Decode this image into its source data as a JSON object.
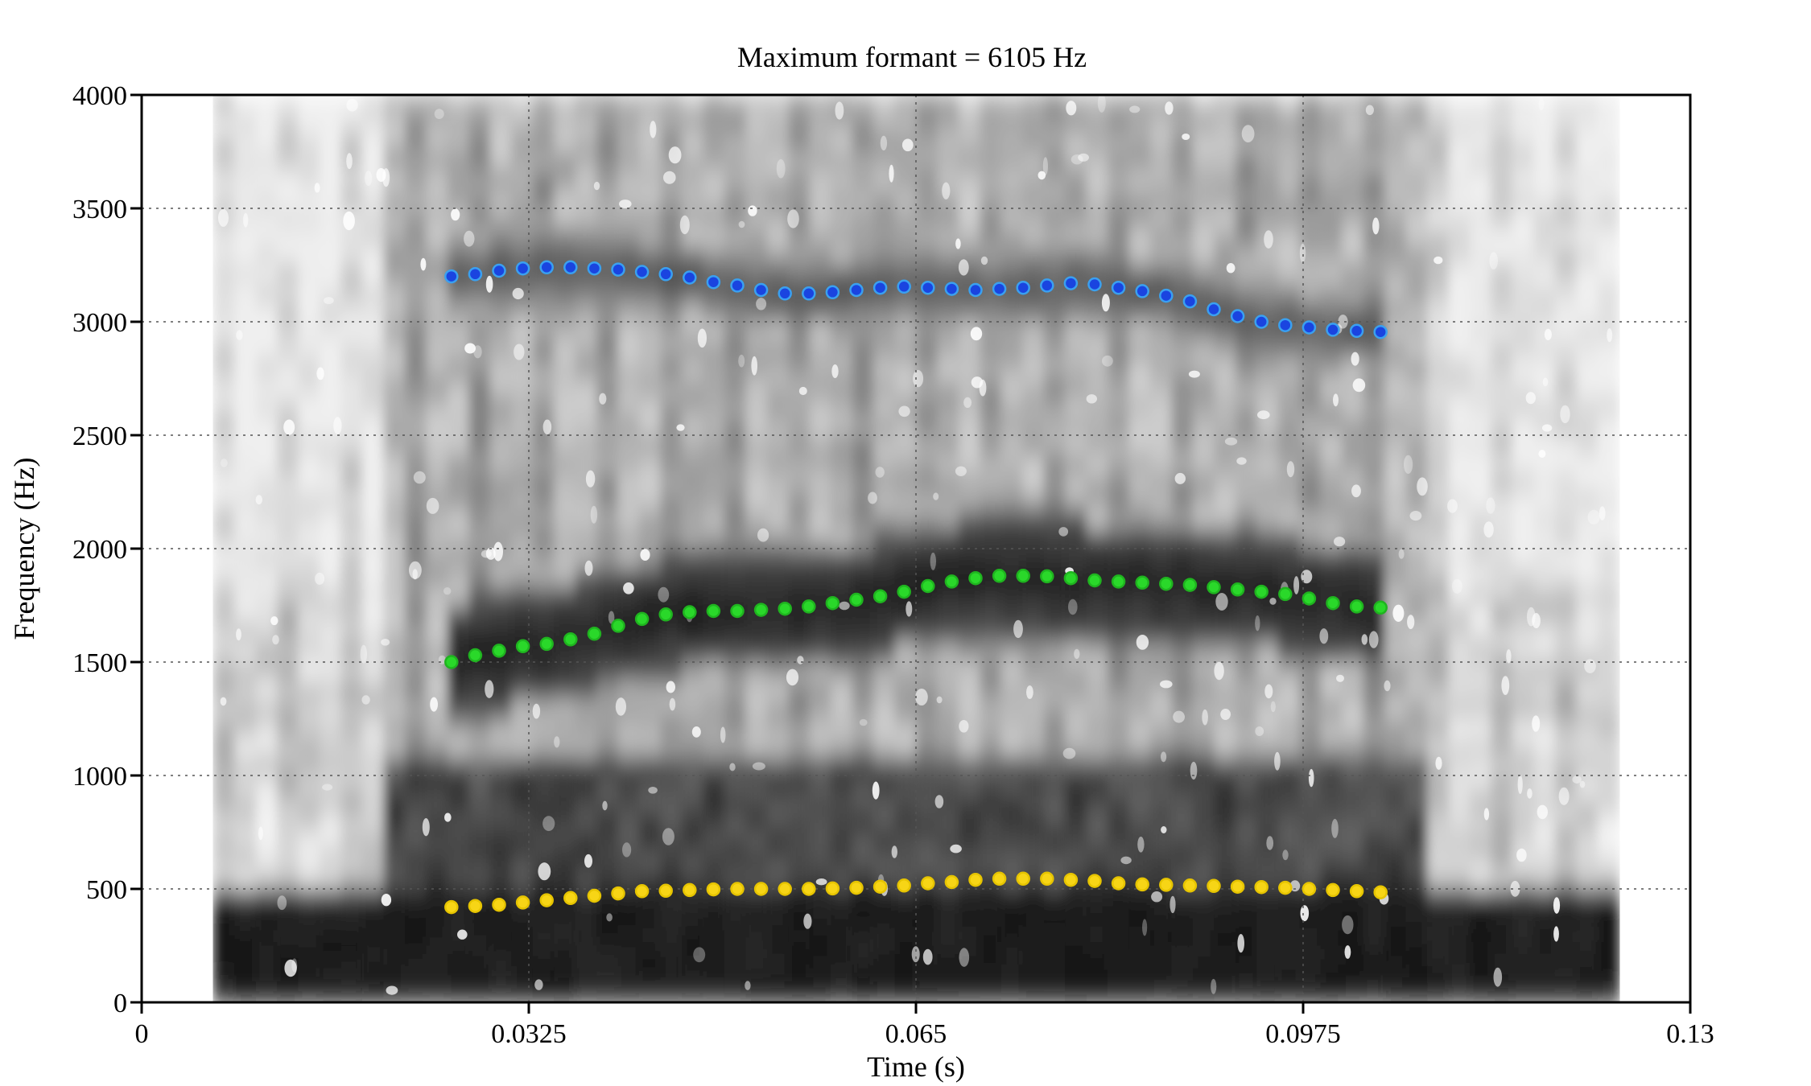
{
  "chart_data": {
    "type": "scatter",
    "title": "Maximum formant  =  6105 Hz",
    "xlabel": "Time (s)",
    "ylabel": "Frequency (Hz)",
    "xlim": [
      0,
      0.13
    ],
    "ylim": [
      0,
      4000
    ],
    "x_ticks": [
      0,
      0.0325,
      0.065,
      0.0975,
      0.13
    ],
    "x_tick_labels": [
      "0",
      "0.0325",
      "0.065",
      "0.0975",
      "0.13"
    ],
    "y_ticks": [
      0,
      500,
      1000,
      1500,
      2000,
      2500,
      3000,
      3500,
      4000
    ],
    "y_tick_labels": [
      "0",
      "500",
      "1000",
      "1500",
      "2000",
      "2500",
      "3000",
      "3500",
      "4000"
    ],
    "grid": true,
    "background": "grayscale spectrogram",
    "spectrogram_time_range": [
      0.006,
      0.124
    ],
    "x": [
      0.026,
      0.028,
      0.03,
      0.032,
      0.034,
      0.036,
      0.038,
      0.04,
      0.042,
      0.044,
      0.046,
      0.048,
      0.05,
      0.052,
      0.054,
      0.056,
      0.058,
      0.06,
      0.062,
      0.064,
      0.066,
      0.068,
      0.07,
      0.072,
      0.074,
      0.076,
      0.078,
      0.08,
      0.082,
      0.084,
      0.086,
      0.088,
      0.09,
      0.092,
      0.094,
      0.096,
      0.098,
      0.1,
      0.102,
      0.104
    ],
    "series": [
      {
        "color": "#f7d516",
        "outline": "#e6c400",
        "values": [
          420,
          425,
          430,
          440,
          450,
          460,
          470,
          480,
          490,
          492,
          495,
          498,
          500,
          500,
          500,
          500,
          502,
          505,
          510,
          515,
          525,
          530,
          540,
          545,
          545,
          545,
          540,
          535,
          525,
          520,
          518,
          515,
          513,
          510,
          508,
          505,
          500,
          495,
          490,
          485
        ]
      },
      {
        "color": "#2ad82a",
        "outline": "#1fb41f",
        "values": [
          1500,
          1530,
          1550,
          1570,
          1580,
          1600,
          1625,
          1660,
          1690,
          1710,
          1720,
          1725,
          1725,
          1730,
          1735,
          1745,
          1760,
          1775,
          1790,
          1810,
          1835,
          1855,
          1870,
          1880,
          1880,
          1878,
          1870,
          1860,
          1855,
          1850,
          1845,
          1840,
          1830,
          1820,
          1810,
          1800,
          1780,
          1760,
          1745,
          1740
        ]
      },
      {
        "color": "#1a44e0",
        "outline": "#3aa0f0",
        "values": [
          3200,
          3210,
          3225,
          3235,
          3240,
          3240,
          3235,
          3230,
          3220,
          3210,
          3195,
          3175,
          3160,
          3140,
          3125,
          3125,
          3130,
          3140,
          3150,
          3155,
          3150,
          3145,
          3140,
          3145,
          3150,
          3160,
          3170,
          3165,
          3150,
          3135,
          3115,
          3090,
          3055,
          3025,
          3000,
          2985,
          2975,
          2965,
          2960,
          2955
        ]
      }
    ]
  }
}
